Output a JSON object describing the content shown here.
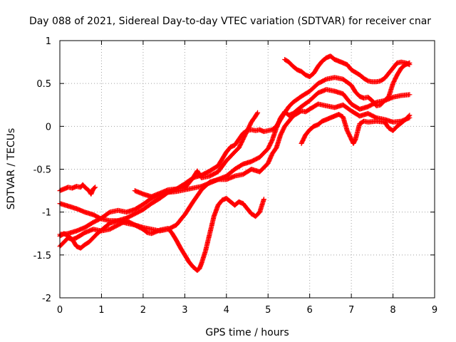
{
  "chart_data": {
    "type": "scatter",
    "title": "Day 088 of 2021, Sidereal Day-to-day VTEC variation (SDTVAR) for receiver cnar",
    "xlabel": "GPS time / hours",
    "ylabel": "SDTVAR / TECUs",
    "xlim": [
      0,
      9
    ],
    "ylim": [
      -2,
      1
    ],
    "xticks": [
      "0",
      "1",
      "2",
      "3",
      "4",
      "5",
      "6",
      "7",
      "8",
      "9"
    ],
    "yticks": [
      "-2",
      "-1.5",
      "-1",
      "-0.5",
      "0",
      "0.5",
      "1"
    ],
    "grid": true,
    "marker": "+",
    "color": "#ff0000",
    "series": [
      {
        "name": "track-a",
        "points": [
          [
            0.0,
            -0.75
          ],
          [
            0.1,
            -0.73
          ],
          [
            0.2,
            -0.71
          ],
          [
            0.3,
            -0.72
          ],
          [
            0.4,
            -0.7
          ],
          [
            0.5,
            -0.71
          ],
          [
            0.55,
            -0.68
          ],
          [
            0.6,
            -0.71
          ],
          [
            0.7,
            -0.75
          ],
          [
            0.75,
            -0.79
          ],
          [
            0.8,
            -0.73
          ],
          [
            0.85,
            -0.71
          ]
        ]
      },
      {
        "name": "track-b",
        "points": [
          [
            0.0,
            -0.9
          ],
          [
            0.2,
            -0.93
          ],
          [
            0.4,
            -0.96
          ],
          [
            0.6,
            -1.0
          ],
          [
            0.8,
            -1.03
          ],
          [
            1.0,
            -1.08
          ],
          [
            1.2,
            -1.1
          ],
          [
            1.4,
            -1.1
          ],
          [
            1.6,
            -1.13
          ],
          [
            1.8,
            -1.15
          ],
          [
            2.0,
            -1.2
          ],
          [
            2.1,
            -1.24
          ],
          [
            2.2,
            -1.25
          ],
          [
            2.4,
            -1.21
          ],
          [
            2.6,
            -1.19
          ],
          [
            2.7,
            -1.25
          ],
          [
            2.8,
            -1.33
          ],
          [
            2.9,
            -1.42
          ],
          [
            3.0,
            -1.5
          ],
          [
            3.1,
            -1.58
          ],
          [
            3.2,
            -1.64
          ],
          [
            3.3,
            -1.68
          ],
          [
            3.35,
            -1.66
          ],
          [
            3.4,
            -1.6
          ],
          [
            3.5,
            -1.45
          ],
          [
            3.6,
            -1.25
          ],
          [
            3.7,
            -1.05
          ],
          [
            3.8,
            -0.92
          ],
          [
            3.9,
            -0.86
          ],
          [
            4.0,
            -0.84
          ],
          [
            4.1,
            -0.88
          ],
          [
            4.2,
            -0.92
          ],
          [
            4.3,
            -0.88
          ],
          [
            4.4,
            -0.9
          ],
          [
            4.5,
            -0.96
          ],
          [
            4.6,
            -1.02
          ],
          [
            4.7,
            -1.05
          ],
          [
            4.8,
            -1.0
          ],
          [
            4.9,
            -0.85
          ]
        ]
      },
      {
        "name": "track-c",
        "points": [
          [
            0.0,
            -1.26
          ],
          [
            0.2,
            -1.25
          ],
          [
            0.4,
            -1.22
          ],
          [
            0.6,
            -1.18
          ],
          [
            0.8,
            -1.12
          ],
          [
            1.0,
            -1.07
          ],
          [
            1.2,
            -1.0
          ],
          [
            1.4,
            -0.98
          ],
          [
            1.6,
            -1.0
          ],
          [
            1.8,
            -0.97
          ],
          [
            2.0,
            -0.91
          ],
          [
            2.2,
            -0.84
          ],
          [
            2.4,
            -0.8
          ],
          [
            2.6,
            -0.77
          ],
          [
            2.8,
            -0.76
          ],
          [
            3.0,
            -0.74
          ],
          [
            3.2,
            -0.72
          ],
          [
            3.4,
            -0.7
          ],
          [
            3.6,
            -0.66
          ],
          [
            3.8,
            -0.62
          ],
          [
            4.0,
            -0.58
          ],
          [
            4.2,
            -0.5
          ],
          [
            4.4,
            -0.44
          ],
          [
            4.6,
            -0.41
          ],
          [
            4.8,
            -0.36
          ],
          [
            5.0,
            -0.26
          ],
          [
            5.1,
            -0.16
          ],
          [
            5.2,
            -0.02
          ],
          [
            5.3,
            0.1
          ],
          [
            5.4,
            0.17
          ],
          [
            5.5,
            0.13
          ],
          [
            5.6,
            0.15
          ],
          [
            5.8,
            0.23
          ],
          [
            6.0,
            0.3
          ],
          [
            6.2,
            0.39
          ],
          [
            6.4,
            0.43
          ],
          [
            6.6,
            0.41
          ],
          [
            6.8,
            0.38
          ],
          [
            7.0,
            0.26
          ],
          [
            7.2,
            0.2
          ],
          [
            7.4,
            0.23
          ],
          [
            7.6,
            0.28
          ],
          [
            7.8,
            0.3
          ],
          [
            8.0,
            0.34
          ],
          [
            8.2,
            0.36
          ],
          [
            8.4,
            0.37
          ]
        ]
      },
      {
        "name": "track-d",
        "points": [
          [
            0.0,
            -1.4
          ],
          [
            0.1,
            -1.35
          ],
          [
            0.2,
            -1.3
          ],
          [
            0.3,
            -1.32
          ],
          [
            0.4,
            -1.4
          ],
          [
            0.5,
            -1.42
          ],
          [
            0.6,
            -1.38
          ],
          [
            0.7,
            -1.35
          ],
          [
            0.8,
            -1.3
          ],
          [
            0.9,
            -1.25
          ],
          [
            1.0,
            -1.21
          ],
          [
            1.2,
            -1.13
          ],
          [
            1.4,
            -1.1
          ],
          [
            1.6,
            -1.07
          ],
          [
            1.8,
            -1.02
          ],
          [
            2.0,
            -0.97
          ],
          [
            2.2,
            -0.9
          ],
          [
            2.4,
            -0.84
          ],
          [
            2.6,
            -0.77
          ],
          [
            2.8,
            -0.73
          ],
          [
            3.0,
            -0.67
          ],
          [
            3.2,
            -0.6
          ],
          [
            3.4,
            -0.57
          ],
          [
            3.6,
            -0.52
          ],
          [
            3.8,
            -0.46
          ],
          [
            4.0,
            -0.3
          ],
          [
            4.1,
            -0.24
          ],
          [
            4.2,
            -0.22
          ],
          [
            4.3,
            -0.15
          ],
          [
            4.4,
            -0.08
          ],
          [
            4.5,
            -0.05
          ],
          [
            4.6,
            -0.04
          ],
          [
            4.7,
            -0.05
          ],
          [
            4.8,
            -0.04
          ],
          [
            4.9,
            -0.06
          ],
          [
            5.0,
            -0.05
          ],
          [
            5.1,
            -0.04
          ],
          [
            5.2,
            0.0
          ],
          [
            5.3,
            0.08
          ],
          [
            5.4,
            0.16
          ],
          [
            5.5,
            0.23
          ],
          [
            5.6,
            0.28
          ],
          [
            5.8,
            0.35
          ],
          [
            6.0,
            0.41
          ],
          [
            6.2,
            0.5
          ],
          [
            6.4,
            0.55
          ],
          [
            6.6,
            0.57
          ],
          [
            6.8,
            0.55
          ],
          [
            7.0,
            0.48
          ],
          [
            7.1,
            0.4
          ],
          [
            7.2,
            0.35
          ],
          [
            7.3,
            0.33
          ],
          [
            7.4,
            0.34
          ],
          [
            7.5,
            0.3
          ],
          [
            7.6,
            0.24
          ],
          [
            7.7,
            0.25
          ],
          [
            7.8,
            0.3
          ],
          [
            7.9,
            0.35
          ],
          [
            8.0,
            0.5
          ],
          [
            8.1,
            0.6
          ],
          [
            8.2,
            0.68
          ],
          [
            8.3,
            0.72
          ],
          [
            8.4,
            0.74
          ]
        ]
      },
      {
        "name": "track-e",
        "points": [
          [
            1.8,
            -0.75
          ],
          [
            2.0,
            -0.79
          ],
          [
            2.2,
            -0.82
          ],
          [
            2.4,
            -0.78
          ],
          [
            2.6,
            -0.74
          ],
          [
            2.8,
            -0.73
          ],
          [
            3.0,
            -0.72
          ],
          [
            3.1,
            -0.66
          ],
          [
            3.2,
            -0.6
          ],
          [
            3.3,
            -0.52
          ],
          [
            3.4,
            -0.6
          ],
          [
            3.6,
            -0.58
          ],
          [
            3.8,
            -0.53
          ],
          [
            4.0,
            -0.4
          ],
          [
            4.2,
            -0.3
          ],
          [
            4.3,
            -0.25
          ],
          [
            4.4,
            -0.15
          ],
          [
            4.5,
            -0.05
          ],
          [
            4.6,
            0.05
          ],
          [
            4.7,
            0.12
          ],
          [
            4.75,
            0.16
          ]
        ]
      },
      {
        "name": "track-f",
        "points": [
          [
            0.0,
            -1.28
          ],
          [
            0.1,
            -1.25
          ],
          [
            0.2,
            -1.28
          ],
          [
            0.3,
            -1.32
          ],
          [
            0.4,
            -1.3
          ],
          [
            0.6,
            -1.24
          ],
          [
            0.8,
            -1.2
          ],
          [
            1.0,
            -1.22
          ],
          [
            1.2,
            -1.2
          ],
          [
            1.4,
            -1.15
          ],
          [
            1.6,
            -1.1
          ],
          [
            1.8,
            -1.15
          ],
          [
            2.0,
            -1.18
          ],
          [
            2.2,
            -1.2
          ],
          [
            2.4,
            -1.22
          ],
          [
            2.6,
            -1.2
          ],
          [
            2.8,
            -1.15
          ],
          [
            3.0,
            -1.03
          ],
          [
            3.2,
            -0.88
          ],
          [
            3.4,
            -0.74
          ],
          [
            3.6,
            -0.65
          ],
          [
            3.8,
            -0.62
          ],
          [
            4.0,
            -0.62
          ],
          [
            4.2,
            -0.58
          ],
          [
            4.4,
            -0.56
          ],
          [
            4.6,
            -0.5
          ],
          [
            4.8,
            -0.53
          ],
          [
            5.0,
            -0.43
          ],
          [
            5.1,
            -0.32
          ],
          [
            5.2,
            -0.25
          ],
          [
            5.3,
            -0.1
          ],
          [
            5.4,
            0.0
          ],
          [
            5.5,
            0.06
          ],
          [
            5.6,
            0.12
          ],
          [
            5.8,
            0.18
          ],
          [
            5.9,
            0.17
          ],
          [
            6.0,
            0.2
          ],
          [
            6.2,
            0.26
          ],
          [
            6.4,
            0.24
          ],
          [
            6.6,
            0.22
          ],
          [
            6.8,
            0.25
          ],
          [
            7.0,
            0.18
          ],
          [
            7.2,
            0.12
          ],
          [
            7.4,
            0.15
          ],
          [
            7.6,
            0.1
          ],
          [
            7.8,
            0.08
          ],
          [
            8.0,
            0.05
          ],
          [
            8.2,
            0.06
          ],
          [
            8.4,
            0.1
          ]
        ]
      },
      {
        "name": "track-g",
        "points": [
          [
            5.4,
            0.78
          ],
          [
            5.5,
            0.75
          ],
          [
            5.6,
            0.7
          ],
          [
            5.7,
            0.66
          ],
          [
            5.8,
            0.64
          ],
          [
            5.9,
            0.6
          ],
          [
            6.0,
            0.58
          ],
          [
            6.1,
            0.62
          ],
          [
            6.2,
            0.7
          ],
          [
            6.3,
            0.76
          ],
          [
            6.4,
            0.8
          ],
          [
            6.5,
            0.82
          ],
          [
            6.6,
            0.78
          ],
          [
            6.7,
            0.76
          ],
          [
            6.8,
            0.74
          ],
          [
            6.9,
            0.72
          ],
          [
            7.0,
            0.66
          ],
          [
            7.1,
            0.63
          ],
          [
            7.2,
            0.6
          ],
          [
            7.3,
            0.56
          ],
          [
            7.4,
            0.53
          ],
          [
            7.5,
            0.52
          ],
          [
            7.6,
            0.52
          ],
          [
            7.7,
            0.53
          ],
          [
            7.8,
            0.56
          ],
          [
            7.9,
            0.62
          ],
          [
            8.0,
            0.68
          ],
          [
            8.1,
            0.74
          ],
          [
            8.2,
            0.75
          ],
          [
            8.3,
            0.74
          ],
          [
            8.4,
            0.72
          ]
        ]
      },
      {
        "name": "track-h",
        "points": [
          [
            5.8,
            -0.2
          ],
          [
            5.9,
            -0.1
          ],
          [
            6.0,
            -0.04
          ],
          [
            6.1,
            0.0
          ],
          [
            6.2,
            0.02
          ],
          [
            6.3,
            0.06
          ],
          [
            6.4,
            0.08
          ],
          [
            6.5,
            0.1
          ],
          [
            6.6,
            0.12
          ],
          [
            6.7,
            0.14
          ],
          [
            6.8,
            0.11
          ],
          [
            6.9,
            -0.05
          ],
          [
            7.0,
            -0.15
          ],
          [
            7.05,
            -0.2
          ],
          [
            7.1,
            -0.15
          ],
          [
            7.2,
            0.03
          ],
          [
            7.3,
            0.06
          ],
          [
            7.4,
            0.05
          ],
          [
            7.6,
            0.06
          ],
          [
            7.8,
            0.05
          ],
          [
            7.9,
            -0.02
          ],
          [
            8.0,
            -0.05
          ],
          [
            8.1,
            0.0
          ],
          [
            8.2,
            0.04
          ],
          [
            8.3,
            0.08
          ],
          [
            8.4,
            0.13
          ]
        ]
      }
    ]
  }
}
